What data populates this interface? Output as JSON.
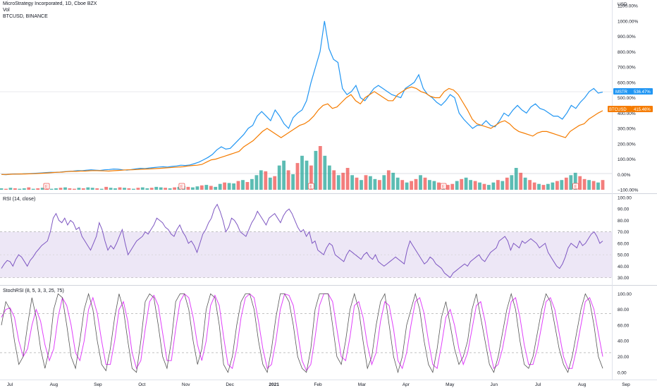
{
  "header": {
    "title": "MicroStrategy Incorporated, 1D, Cboe BZX",
    "vol_label": "Vol",
    "compare_label": "BTCUSD, BINANCE",
    "currency": "USD"
  },
  "panes": {
    "rsi_label": "RSI (14, close)",
    "stoch_label": "StochRSI (8, 5, 3, 3, 25, 75)"
  },
  "badges": {
    "mstr": {
      "label": "MSTR",
      "value": "536.47%",
      "color": "#2196f3"
    },
    "btc": {
      "label": "BTCUSD",
      "value": "415.46%",
      "color": "#f57c00"
    }
  },
  "events": [
    "E",
    "E",
    "E",
    "E",
    "E"
  ],
  "x_axis": {
    "labels": [
      "Jul",
      "Aug",
      "Sep",
      "Oct",
      "Nov",
      "Dec",
      "2021",
      "Feb",
      "Mar",
      "Apr",
      "May",
      "Jun",
      "Jul",
      "Aug",
      "Sep"
    ],
    "bold": [
      "2021"
    ]
  },
  "colors": {
    "mstr": "#2196f3",
    "btc": "#f57c00",
    "rsi": "#7e57c2",
    "rsi_band": "#ede7f6",
    "stoch_k": "#555555",
    "stoch_d": "#e040fb",
    "vol_up": "#26a69a",
    "vol_down": "#ef5350"
  },
  "chart_data": [
    {
      "type": "line",
      "name": "main-price",
      "y_axis_labels": [
        "1100.00%",
        "1000.00%",
        "900.00%",
        "800.00%",
        "700.00%",
        "600.00%",
        "500.00%",
        "400.00%",
        "300.00%",
        "200.00%",
        "100.00%",
        "0.00%",
        "−100.00%"
      ],
      "ylim": [
        -100,
        1100
      ],
      "series": [
        {
          "name": "MSTR",
          "last": "536.47%",
          "values": [
            0,
            -2,
            1,
            3,
            2,
            4,
            5,
            6,
            8,
            10,
            12,
            14,
            13,
            15,
            18,
            20,
            22,
            25,
            24,
            28,
            30,
            28,
            26,
            30,
            32,
            35,
            34,
            30,
            28,
            32,
            36,
            40,
            38,
            42,
            45,
            48,
            50,
            48,
            52,
            55,
            60,
            58,
            62,
            70,
            80,
            95,
            110,
            130,
            160,
            180,
            165,
            170,
            200,
            230,
            260,
            300,
            320,
            380,
            410,
            380,
            350,
            420,
            380,
            330,
            300,
            370,
            400,
            420,
            480,
            600,
            700,
            800,
            1000,
            820,
            750,
            730,
            560,
            520,
            540,
            580,
            500,
            480,
            520,
            560,
            580,
            560,
            540,
            520,
            510,
            500,
            560,
            580,
            600,
            650,
            560,
            520,
            500,
            470,
            450,
            480,
            520,
            500,
            400,
            360,
            330,
            300,
            320,
            320,
            350,
            320,
            310,
            350,
            400,
            380,
            420,
            450,
            420,
            400,
            440,
            460,
            430,
            420,
            400,
            380,
            380,
            360,
            400,
            450,
            430,
            470,
            500,
            540,
            560,
            530,
            536.47
          ]
        },
        {
          "name": "BTCUSD",
          "last": "415.46%",
          "values": [
            0,
            0,
            1,
            2,
            3,
            3,
            4,
            5,
            6,
            8,
            10,
            12,
            14,
            15,
            18,
            20,
            20,
            22,
            22,
            24,
            25,
            24,
            23,
            22,
            24,
            26,
            28,
            30,
            30,
            32,
            34,
            35,
            36,
            38,
            40,
            42,
            44,
            46,
            48,
            50,
            55,
            58,
            60,
            65,
            80,
            95,
            100,
            110,
            120,
            130,
            140,
            150,
            180,
            200,
            220,
            250,
            280,
            300,
            280,
            260,
            240,
            260,
            280,
            300,
            320,
            330,
            350,
            380,
            420,
            450,
            460,
            430,
            440,
            470,
            500,
            520,
            480,
            460,
            500,
            520,
            540,
            520,
            500,
            480,
            480,
            520,
            540,
            560,
            570,
            560,
            540,
            530,
            510,
            500,
            500,
            540,
            560,
            550,
            520,
            470,
            420,
            360,
            330,
            320,
            310,
            300,
            320,
            340,
            350,
            330,
            300,
            280,
            270,
            260,
            250,
            270,
            280,
            280,
            270,
            260,
            250,
            240,
            280,
            300,
            320,
            330,
            360,
            380,
            400,
            415.46
          ]
        }
      ]
    },
    {
      "type": "bar",
      "name": "volume",
      "values": [
        3,
        2,
        4,
        3,
        2,
        3,
        5,
        2,
        3,
        4,
        3,
        2,
        3,
        4,
        5,
        3,
        2,
        4,
        3,
        5,
        4,
        3,
        2,
        6,
        4,
        3,
        5,
        4,
        3,
        2,
        4,
        5,
        3,
        4,
        6,
        5,
        4,
        3,
        5,
        6,
        8,
        6,
        5,
        7,
        9,
        10,
        8,
        6,
        12,
        15,
        14,
        13,
        18,
        20,
        16,
        22,
        30,
        40,
        38,
        25,
        28,
        50,
        60,
        40,
        32,
        55,
        70,
        60,
        50,
        80,
        90,
        70,
        50,
        40,
        30,
        35,
        45,
        30,
        25,
        20,
        30,
        28,
        22,
        20,
        30,
        40,
        35,
        25,
        20,
        15,
        18,
        22,
        30,
        25,
        20,
        18,
        15,
        12,
        10,
        12,
        18,
        22,
        25,
        20,
        18,
        15,
        12,
        10,
        15,
        20,
        18,
        25,
        30,
        45,
        35,
        25,
        20,
        15,
        12,
        10,
        12,
        15,
        18,
        20,
        25,
        30,
        35,
        28,
        22,
        20,
        18,
        15,
        20
      ],
      "up": [
        1,
        0,
        1,
        0,
        1,
        1,
        0,
        1,
        0,
        1,
        0,
        1,
        1,
        0,
        1,
        0,
        0,
        1,
        0,
        1,
        1,
        0,
        1,
        0,
        1,
        1,
        0,
        1,
        0,
        1,
        0,
        1,
        1,
        0,
        1,
        1,
        0,
        1,
        0,
        1,
        1,
        0,
        1,
        1,
        0,
        1,
        0,
        1,
        1,
        0,
        1,
        1,
        0,
        1,
        0,
        1,
        1,
        1,
        0,
        1,
        0,
        1,
        1,
        0,
        1,
        0,
        1,
        1,
        0,
        1,
        0,
        1,
        1,
        0,
        1,
        0,
        0,
        1,
        0,
        1,
        0,
        1,
        1,
        0,
        1,
        0,
        1,
        1,
        0,
        1,
        0,
        0,
        1,
        0,
        1,
        1,
        0,
        1,
        0,
        0,
        1,
        0,
        1,
        1,
        0,
        1,
        0,
        1,
        1,
        0,
        1,
        0,
        1,
        1,
        0,
        1,
        0,
        0,
        1,
        0,
        1,
        1,
        0,
        1,
        0,
        1,
        1,
        0,
        0,
        1,
        0,
        1,
        0
      ]
    },
    {
      "type": "line",
      "name": "RSI",
      "y_axis_labels": [
        "100.00",
        "90.00",
        "80.00",
        "70.00",
        "60.00",
        "50.00",
        "40.00",
        "30.00"
      ],
      "ylim": [
        26,
        100
      ],
      "bands": [
        30,
        70
      ],
      "values": [
        38,
        42,
        45,
        44,
        40,
        46,
        50,
        48,
        44,
        40,
        45,
        48,
        52,
        55,
        58,
        60,
        62,
        70,
        82,
        86,
        80,
        78,
        82,
        76,
        80,
        78,
        72,
        74,
        66,
        62,
        58,
        54,
        60,
        66,
        78,
        72,
        62,
        54,
        58,
        55,
        60,
        66,
        72,
        60,
        50,
        54,
        58,
        62,
        64,
        66,
        70,
        68,
        72,
        76,
        82,
        80,
        78,
        74,
        72,
        68,
        66,
        72,
        76,
        70,
        66,
        60,
        62,
        58,
        52,
        60,
        68,
        72,
        78,
        82,
        90,
        94,
        88,
        80,
        70,
        74,
        82,
        80,
        76,
        70,
        68,
        66,
        72,
        78,
        82,
        88,
        84,
        80,
        76,
        82,
        84,
        86,
        82,
        78,
        84,
        88,
        90,
        86,
        80,
        74,
        70,
        72,
        66,
        70,
        60,
        62,
        54,
        52,
        50,
        56,
        60,
        58,
        50,
        48,
        46,
        44,
        50,
        54,
        52,
        50,
        48,
        46,
        50,
        52,
        48,
        46,
        50,
        44,
        42,
        40,
        42,
        44,
        46,
        48,
        46,
        44,
        42,
        54,
        62,
        58,
        54,
        50,
        46,
        42,
        44,
        48,
        46,
        42,
        40,
        38,
        34,
        32,
        30,
        34,
        36,
        38,
        40,
        42,
        40,
        44,
        46,
        48,
        50,
        46,
        44,
        48,
        52,
        54,
        56,
        62,
        64,
        66,
        62,
        54,
        60,
        58,
        56,
        62,
        60,
        62,
        64,
        62,
        60,
        56,
        58,
        60,
        52,
        48,
        44,
        40,
        38,
        42,
        48,
        56,
        60,
        58,
        56,
        62,
        58,
        60,
        64,
        68,
        70,
        66,
        60,
        62
      ]
    },
    {
      "type": "line",
      "name": "StochRSI",
      "y_axis_labels": [
        "100.00",
        "80.00",
        "60.00",
        "40.00",
        "20.00",
        "0.00"
      ],
      "ylim": [
        -2,
        104
      ],
      "bands": [
        25,
        75
      ],
      "series": [
        {
          "name": "K",
          "values": [
            60,
            90,
            80,
            40,
            10,
            20,
            60,
            95,
            70,
            30,
            5,
            30,
            80,
            100,
            95,
            60,
            20,
            5,
            40,
            80,
            100,
            80,
            40,
            10,
            2,
            30,
            70,
            100,
            80,
            40,
            5,
            0,
            40,
            90,
            100,
            95,
            60,
            20,
            5,
            40,
            90,
            100,
            100,
            80,
            40,
            10,
            30,
            80,
            100,
            95,
            60,
            10,
            0,
            20,
            60,
            90,
            100,
            100,
            80,
            40,
            10,
            0,
            30,
            70,
            100,
            100,
            90,
            60,
            20,
            5,
            0,
            30,
            80,
            100,
            100,
            100,
            60,
            20,
            10,
            40,
            80,
            100,
            80,
            40,
            5,
            20,
            60,
            90,
            100,
            60,
            20,
            0,
            20,
            60,
            80,
            100,
            80,
            40,
            10,
            0,
            30,
            70,
            90,
            60,
            30,
            10,
            20,
            40,
            80,
            100,
            70,
            40,
            10,
            0,
            20,
            50,
            80,
            100,
            80,
            40,
            10,
            5,
            20,
            50,
            80,
            100,
            90,
            60,
            30,
            10,
            0,
            20,
            50,
            80,
            100,
            90,
            60,
            20,
            5
          ]
        },
        {
          "name": "D",
          "values": [
            70,
            80,
            82,
            70,
            40,
            20,
            30,
            60,
            80,
            65,
            35,
            15,
            30,
            70,
            95,
            85,
            60,
            25,
            15,
            40,
            80,
            95,
            75,
            40,
            10,
            10,
            40,
            80,
            90,
            65,
            25,
            5,
            15,
            55,
            90,
            98,
            85,
            50,
            15,
            15,
            55,
            90,
            100,
            95,
            70,
            35,
            15,
            40,
            85,
            98,
            85,
            45,
            10,
            5,
            30,
            70,
            95,
            100,
            95,
            65,
            30,
            5,
            10,
            40,
            80,
            100,
            98,
            85,
            50,
            15,
            2,
            10,
            45,
            85,
            100,
            100,
            90,
            55,
            20,
            15,
            45,
            85,
            90,
            70,
            35,
            10,
            25,
            65,
            90,
            85,
            55,
            15,
            5,
            25,
            60,
            90,
            95,
            75,
            40,
            10,
            5,
            35,
            70,
            80,
            60,
            30,
            10,
            25,
            55,
            85,
            90,
            65,
            30,
            5,
            10,
            30,
            60,
            90,
            95,
            70,
            35,
            10,
            10,
            30,
            60,
            90,
            95,
            80,
            50,
            20,
            5,
            5,
            30,
            60,
            90,
            95,
            80,
            50,
            20
          ]
        }
      ]
    }
  ]
}
